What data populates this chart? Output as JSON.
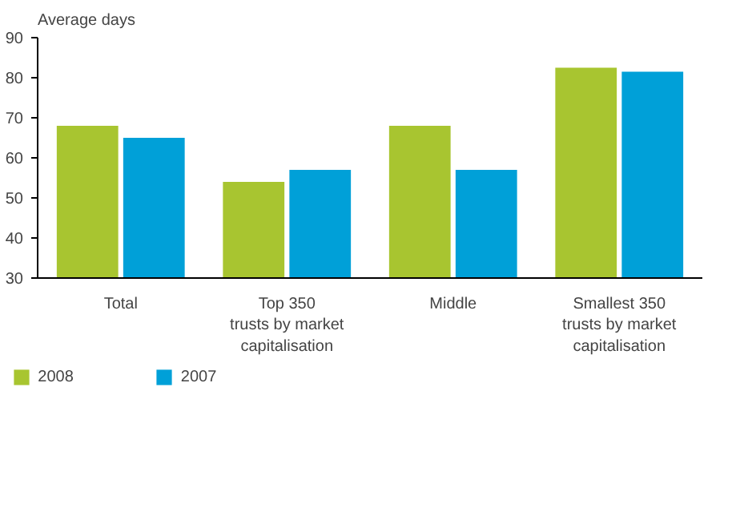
{
  "chart_data": {
    "type": "bar",
    "ylabel": "Average days",
    "categories": [
      "Total",
      "Top 350\ntrusts by market\ncapitalisation",
      "Middle",
      "Smallest 350\ntrusts by market\ncapitalisation"
    ],
    "series": [
      {
        "name": "2008",
        "color": "#a8c530",
        "values": [
          68,
          54,
          68,
          82.5
        ]
      },
      {
        "name": "2007",
        "color": "#00a0d8",
        "values": [
          65,
          57,
          57,
          81.5
        ]
      }
    ],
    "ylim": [
      30,
      90
    ],
    "yticks": [
      30,
      40,
      50,
      60,
      70,
      80,
      90
    ],
    "grid": false,
    "legend": "bottom left"
  }
}
